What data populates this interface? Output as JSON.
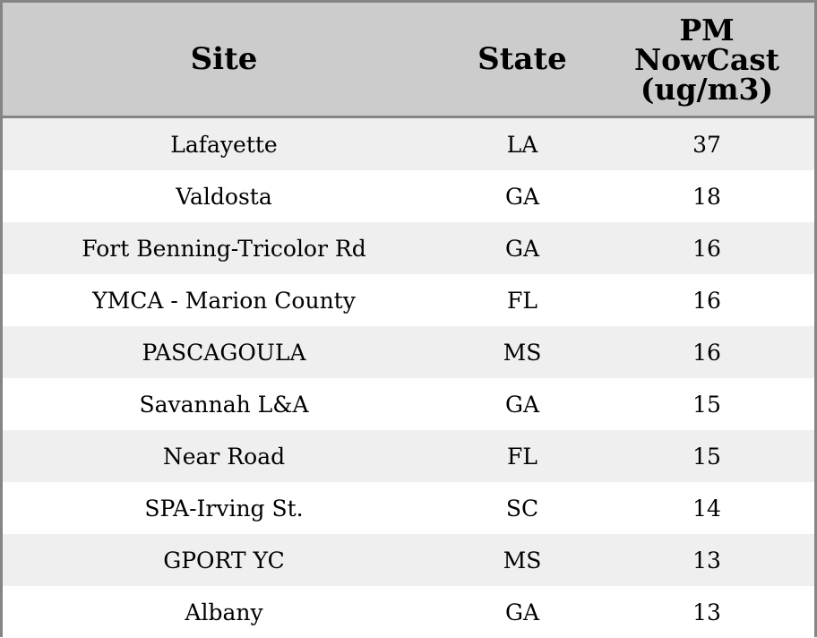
{
  "chart_data": {
    "type": "table",
    "columns": {
      "site": "Site",
      "state": "State",
      "pm_lines": [
        "PM",
        "NowCast",
        "(ug/m3)"
      ]
    },
    "rows": [
      {
        "site": "Lafayette",
        "state": "LA",
        "pm": "37"
      },
      {
        "site": "Valdosta",
        "state": "GA",
        "pm": "18"
      },
      {
        "site": "Fort Benning-Tricolor Rd",
        "state": "GA",
        "pm": "16"
      },
      {
        "site": "YMCA - Marion County",
        "state": "FL",
        "pm": "16"
      },
      {
        "site": "PASCAGOULA",
        "state": "MS",
        "pm": "16"
      },
      {
        "site": "Savannah L&A",
        "state": "GA",
        "pm": "15"
      },
      {
        "site": "Near Road",
        "state": "FL",
        "pm": "15"
      },
      {
        "site": "SPA-Irving St.",
        "state": "SC",
        "pm": "14"
      },
      {
        "site": "GPORT YC",
        "state": "MS",
        "pm": "13"
      },
      {
        "site": "Albany",
        "state": "GA",
        "pm": "13"
      }
    ]
  },
  "colors": {
    "header_bg": "#cccccc",
    "row_alt_bg": "#efefef",
    "row_bg": "#ffffff",
    "border": "#858585"
  }
}
